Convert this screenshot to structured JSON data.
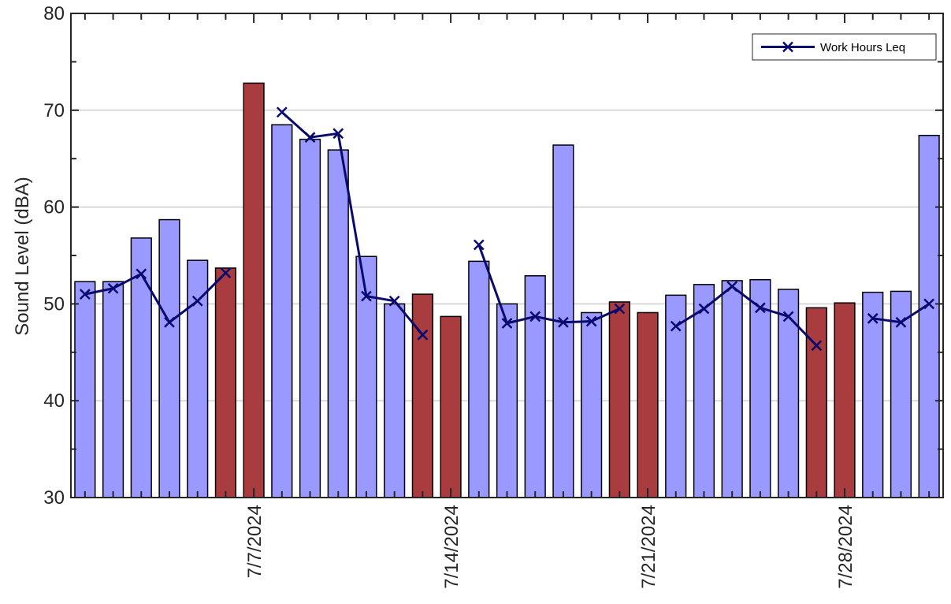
{
  "chart_data": {
    "type": "bar",
    "ylabel": "Sound Level (dBA)",
    "ylim": [
      30,
      80
    ],
    "yticks": [
      30,
      40,
      50,
      60,
      70,
      80
    ],
    "x_tick_labels": [
      "7/7/2024",
      "7/14/2024",
      "7/21/2024",
      "7/28/2024"
    ],
    "x_tick_positions": [
      "2024-07-07",
      "2024-07-14",
      "2024-07-21",
      "2024-07-28"
    ],
    "grid": "horizontal",
    "legend_position": "top-right",
    "colors": {
      "weekday_bar": "#9999FF",
      "weekend_bar": "#A83C3F",
      "line": "#0A0A6E",
      "grid": "#DADADA"
    },
    "bars": {
      "dates": [
        "2024-07-01",
        "2024-07-02",
        "2024-07-03",
        "2024-07-04",
        "2024-07-05",
        "2024-07-06",
        "2024-07-07",
        "2024-07-08",
        "2024-07-09",
        "2024-07-10",
        "2024-07-11",
        "2024-07-12",
        "2024-07-13",
        "2024-07-14",
        "2024-07-15",
        "2024-07-16",
        "2024-07-17",
        "2024-07-18",
        "2024-07-19",
        "2024-07-20",
        "2024-07-21",
        "2024-07-22",
        "2024-07-23",
        "2024-07-24",
        "2024-07-25",
        "2024-07-26",
        "2024-07-27",
        "2024-07-28",
        "2024-07-29",
        "2024-07-30",
        "2024-07-31"
      ],
      "values": [
        52.3,
        52.3,
        56.8,
        58.7,
        54.5,
        53.7,
        72.8,
        68.5,
        67.0,
        65.9,
        54.9,
        50.0,
        51.0,
        48.7,
        54.4,
        50.0,
        52.9,
        66.4,
        49.1,
        50.2,
        49.1,
        50.9,
        52.0,
        52.4,
        52.5,
        51.5,
        49.6,
        50.1,
        51.2,
        51.3,
        67.4
      ],
      "weekend": [
        false,
        false,
        false,
        false,
        false,
        true,
        true,
        false,
        false,
        false,
        false,
        false,
        true,
        true,
        false,
        false,
        false,
        false,
        false,
        true,
        true,
        false,
        false,
        false,
        false,
        false,
        true,
        true,
        false,
        false,
        false
      ]
    },
    "series": [
      {
        "name": "Work Hours Leq",
        "marker": "x",
        "segments": [
          {
            "dates": [
              "2024-07-01",
              "2024-07-02",
              "2024-07-03",
              "2024-07-04",
              "2024-07-05",
              "2024-07-06"
            ],
            "values": [
              51.0,
              51.6,
              53.1,
              48.1,
              50.3,
              53.2
            ]
          },
          {
            "dates": [
              "2024-07-08",
              "2024-07-09",
              "2024-07-10",
              "2024-07-11",
              "2024-07-12",
              "2024-07-13"
            ],
            "values": [
              69.8,
              67.2,
              67.6,
              50.8,
              50.3,
              46.8
            ]
          },
          {
            "dates": [
              "2024-07-15",
              "2024-07-16",
              "2024-07-17",
              "2024-07-18",
              "2024-07-19",
              "2024-07-20"
            ],
            "values": [
              56.1,
              48.0,
              48.7,
              48.1,
              48.2,
              49.5
            ]
          },
          {
            "dates": [
              "2024-07-22",
              "2024-07-23",
              "2024-07-24",
              "2024-07-25",
              "2024-07-26",
              "2024-07-27"
            ],
            "values": [
              47.7,
              49.5,
              51.8,
              49.6,
              48.7,
              45.7
            ]
          },
          {
            "dates": [
              "2024-07-29",
              "2024-07-30",
              "2024-07-31"
            ],
            "values": [
              48.5,
              48.1,
              50.0
            ]
          }
        ]
      }
    ]
  }
}
